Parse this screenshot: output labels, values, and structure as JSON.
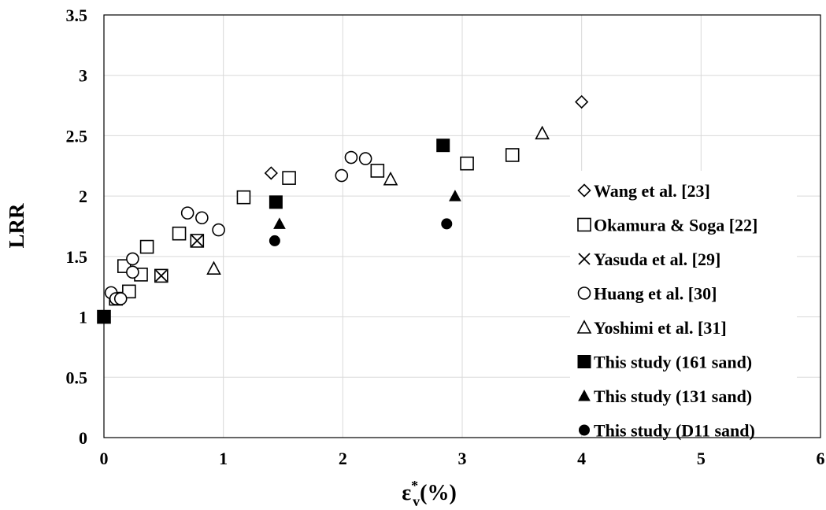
{
  "chart_data": {
    "type": "scatter",
    "title": "",
    "xlabel_main": "ε",
    "xlabel_sup": "*",
    "xlabel_sub": "v",
    "xlabel_tail": "(%)",
    "ylabel": "LRR",
    "xlim": [
      0,
      6
    ],
    "ylim": [
      0,
      3.5
    ],
    "xticks": [
      "0",
      "1",
      "2",
      "3",
      "4",
      "5",
      "6"
    ],
    "yticks": [
      "0",
      "0.5",
      "1",
      "1.5",
      "2",
      "2.5",
      "3",
      "3.5"
    ],
    "grid": true,
    "legend_position": "right-center",
    "series": [
      {
        "name": "Wang et al. [23]",
        "marker": "diamond-open",
        "points": [
          [
            1.4,
            2.19
          ],
          [
            4.0,
            2.78
          ]
        ]
      },
      {
        "name": "Okamura & Soga [22]",
        "marker": "square-open",
        "points": [
          [
            0.0,
            1.0
          ],
          [
            0.1,
            1.15
          ],
          [
            0.17,
            1.42
          ],
          [
            0.21,
            1.21
          ],
          [
            0.31,
            1.35
          ],
          [
            0.36,
            1.58
          ],
          [
            0.48,
            1.34
          ],
          [
            0.63,
            1.69
          ],
          [
            0.78,
            1.63
          ],
          [
            1.17,
            1.99
          ],
          [
            1.55,
            2.15
          ],
          [
            2.29,
            2.21
          ],
          [
            3.04,
            2.27
          ],
          [
            3.42,
            2.34
          ]
        ]
      },
      {
        "name": "Yasuda et al. [29]",
        "marker": "x",
        "points": [
          [
            0.48,
            1.34
          ],
          [
            0.78,
            1.63
          ]
        ]
      },
      {
        "name": "Huang et al. [30]",
        "marker": "circle-open",
        "points": [
          [
            0.06,
            1.2
          ],
          [
            0.1,
            1.15
          ],
          [
            0.14,
            1.15
          ],
          [
            0.24,
            1.37
          ],
          [
            0.24,
            1.48
          ],
          [
            0.7,
            1.86
          ],
          [
            0.82,
            1.82
          ],
          [
            0.96,
            1.72
          ],
          [
            1.99,
            2.17
          ],
          [
            2.07,
            2.32
          ],
          [
            2.19,
            2.31
          ]
        ]
      },
      {
        "name": "Yoshimi et al. [31]",
        "marker": "triangle-open",
        "points": [
          [
            0.92,
            1.4
          ],
          [
            2.4,
            2.14
          ],
          [
            3.67,
            2.52
          ]
        ]
      },
      {
        "name": "This study (161 sand)",
        "marker": "square-filled",
        "points": [
          [
            0.0,
            1.0
          ],
          [
            1.44,
            1.95
          ],
          [
            2.84,
            2.42
          ]
        ]
      },
      {
        "name": "This study (131 sand)",
        "marker": "triangle-filled",
        "points": [
          [
            1.47,
            1.77
          ],
          [
            2.94,
            2.0
          ]
        ]
      },
      {
        "name": "This study (D11 sand)",
        "marker": "circle-filled",
        "points": [
          [
            1.43,
            1.63
          ],
          [
            2.87,
            1.77
          ]
        ]
      }
    ]
  }
}
